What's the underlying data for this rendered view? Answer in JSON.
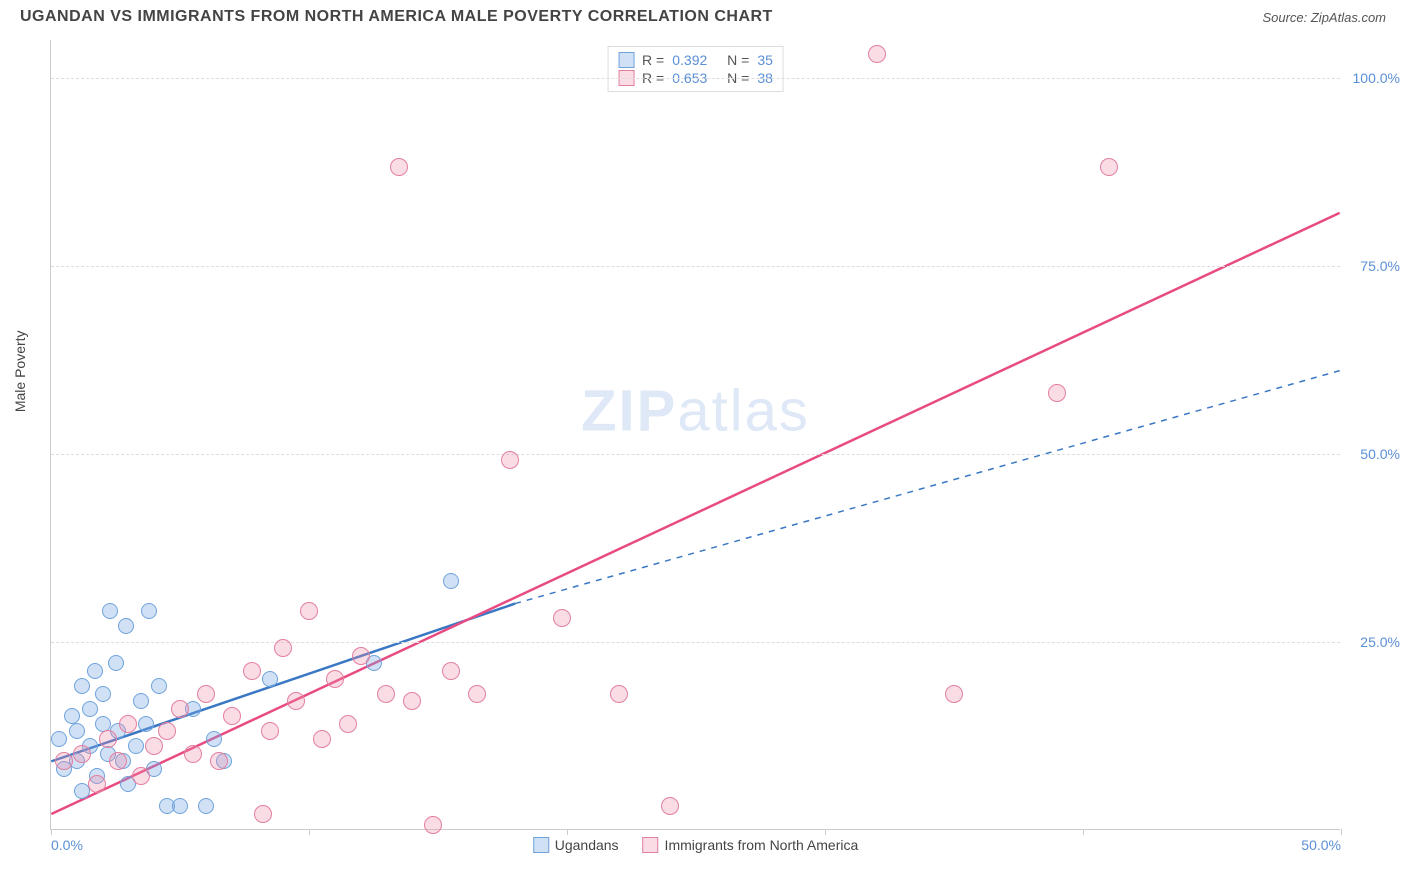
{
  "header": {
    "title": "UGANDAN VS IMMIGRANTS FROM NORTH AMERICA MALE POVERTY CORRELATION CHART",
    "source": "Source: ZipAtlas.com"
  },
  "axes": {
    "y_label": "Male Poverty",
    "xlim": [
      0,
      50
    ],
    "ylim": [
      0,
      105
    ],
    "y_ticks": [
      25,
      50,
      75,
      100
    ],
    "y_tick_labels": [
      "25.0%",
      "50.0%",
      "75.0%",
      "100.0%"
    ],
    "x_ticks": [
      0,
      10,
      20,
      30,
      40,
      50
    ],
    "x_tick_labels": [
      "0.0%",
      "",
      "",
      "",
      "",
      "50.0%"
    ],
    "grid_color": "#dddddd",
    "axis_color": "#cccccc",
    "tick_label_color": "#5b8fd6"
  },
  "watermark": {
    "text_bold": "ZIP",
    "text_light": "atlas"
  },
  "series": [
    {
      "key": "ugandans",
      "label": "Ugandans",
      "R": "0.392",
      "N": "35",
      "fill": "rgba(120,170,230,0.35)",
      "stroke": "#6fa3dc",
      "line_color": "#3b78c4",
      "marker_radius": 8,
      "trend": {
        "x1": 0,
        "y1": 9,
        "x2": 18,
        "y2": 30,
        "dash_x2": 50,
        "dash_y2": 61
      },
      "points": [
        [
          0.3,
          12
        ],
        [
          0.5,
          8
        ],
        [
          0.8,
          15
        ],
        [
          1.0,
          9
        ],
        [
          1.0,
          13
        ],
        [
          1.2,
          19
        ],
        [
          1.2,
          5
        ],
        [
          1.5,
          11
        ],
        [
          1.5,
          16
        ],
        [
          1.7,
          21
        ],
        [
          1.8,
          7
        ],
        [
          2.0,
          14
        ],
        [
          2.0,
          18
        ],
        [
          2.2,
          10
        ],
        [
          2.3,
          29
        ],
        [
          2.5,
          22
        ],
        [
          2.6,
          13
        ],
        [
          2.8,
          9
        ],
        [
          2.9,
          27
        ],
        [
          3.0,
          6
        ],
        [
          3.3,
          11
        ],
        [
          3.5,
          17
        ],
        [
          3.7,
          14
        ],
        [
          3.8,
          29
        ],
        [
          4.0,
          8
        ],
        [
          4.2,
          19
        ],
        [
          4.5,
          3
        ],
        [
          5.0,
          3
        ],
        [
          5.5,
          16
        ],
        [
          6.0,
          3
        ],
        [
          6.3,
          12
        ],
        [
          6.7,
          9
        ],
        [
          8.5,
          20
        ],
        [
          12.5,
          22
        ],
        [
          15.5,
          33
        ]
      ]
    },
    {
      "key": "immigrants",
      "label": "Immigrants from North America",
      "R": "0.653",
      "N": "38",
      "fill": "rgba(240,140,170,0.30)",
      "stroke": "#e37fa0",
      "line_color": "#e84b82",
      "marker_radius": 9,
      "trend": {
        "x1": 0,
        "y1": 2,
        "x2": 50,
        "y2": 82
      },
      "points": [
        [
          0.5,
          9
        ],
        [
          1.2,
          10
        ],
        [
          1.8,
          6
        ],
        [
          2.2,
          12
        ],
        [
          2.6,
          9
        ],
        [
          3.0,
          14
        ],
        [
          3.5,
          7
        ],
        [
          4.0,
          11
        ],
        [
          4.5,
          13
        ],
        [
          5.0,
          16
        ],
        [
          5.5,
          10
        ],
        [
          6.0,
          18
        ],
        [
          6.5,
          9
        ],
        [
          7.0,
          15
        ],
        [
          7.8,
          21
        ],
        [
          8.2,
          2
        ],
        [
          8.5,
          13
        ],
        [
          9.0,
          24
        ],
        [
          9.5,
          17
        ],
        [
          10.0,
          29
        ],
        [
          10.5,
          12
        ],
        [
          11.0,
          20
        ],
        [
          11.5,
          14
        ],
        [
          12.0,
          23
        ],
        [
          13.0,
          18
        ],
        [
          13.5,
          88
        ],
        [
          14.0,
          17
        ],
        [
          14.8,
          0.5
        ],
        [
          15.5,
          21
        ],
        [
          16.5,
          18
        ],
        [
          17.8,
          49
        ],
        [
          19.8,
          28
        ],
        [
          22.0,
          18
        ],
        [
          24.0,
          3
        ],
        [
          32.0,
          103
        ],
        [
          35.0,
          18
        ],
        [
          39.0,
          58
        ],
        [
          41.0,
          88
        ]
      ]
    }
  ],
  "legend_top": {
    "R_label": "R =",
    "N_label": "N ="
  },
  "styling": {
    "background": "#ffffff",
    "title_color": "#444444",
    "title_fontsize": 16,
    "axis_label_fontsize": 14,
    "watermark_color": "rgba(160,190,230,0.35)",
    "watermark_fontsize": 58
  }
}
